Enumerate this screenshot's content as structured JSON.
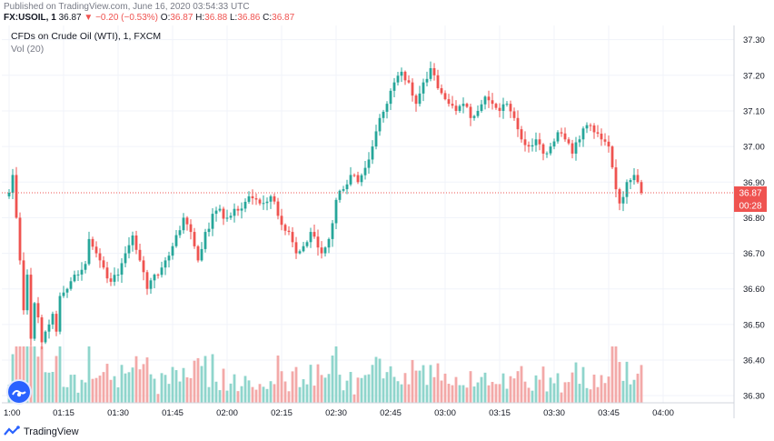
{
  "header": {
    "published": "Published on TradingView.com, June 16, 2020 03:54:33 UTC",
    "symbol": "FX:USOIL, 1",
    "last": "36.87",
    "arrow": "▼",
    "change": "−0.20 (−0.53%)",
    "o_label": "O:",
    "o_value": "36.87",
    "h_label": "H:",
    "h_value": "36.88",
    "l_label": "L:",
    "l_value": "36.86",
    "c_label": "C:",
    "c_value": "36.87"
  },
  "chart_title": "CFDs on Crude Oil (WTI), 1, FXCM",
  "volume_label": "Vol (20)",
  "price_badge": "36.87",
  "countdown_badge": "00:28",
  "footer": {
    "brand": "TradingView"
  },
  "colors": {
    "up": "#26a69a",
    "down": "#ef5350",
    "vol_up": "#8fd5cc",
    "vol_down": "#f3a9a8",
    "badge": "#ef5350"
  },
  "chart_data": {
    "type": "candlestick",
    "y_ticks": [
      "37.30",
      "37.20",
      "37.10",
      "37.00",
      "36.90",
      "36.80",
      "36.70",
      "36.60",
      "36.50",
      "36.40",
      "36.30"
    ],
    "ylim": [
      36.28,
      37.34
    ],
    "x_ticks": [
      "1:00",
      "01:15",
      "01:30",
      "01:45",
      "02:00",
      "02:15",
      "02:30",
      "02:45",
      "03:00",
      "03:15",
      "03:30",
      "03:45",
      "04:00"
    ],
    "x_tick_minutes": [
      0,
      15,
      30,
      45,
      60,
      75,
      90,
      105,
      120,
      135,
      150,
      165,
      180
    ],
    "last_price": 36.87,
    "anchors": [
      [
        0,
        36.87
      ],
      [
        1,
        36.92
      ],
      [
        2,
        36.8
      ],
      [
        3,
        36.68
      ],
      [
        4,
        36.54
      ],
      [
        5,
        36.64
      ],
      [
        6,
        36.46
      ],
      [
        7,
        36.56
      ],
      [
        8,
        36.52
      ],
      [
        9,
        36.45
      ],
      [
        10,
        36.48
      ],
      [
        11,
        36.5
      ],
      [
        12,
        36.53
      ],
      [
        13,
        36.48
      ],
      [
        14,
        36.58
      ],
      [
        16,
        36.6
      ],
      [
        18,
        36.64
      ],
      [
        21,
        36.67
      ],
      [
        22,
        36.74
      ],
      [
        24,
        36.7
      ],
      [
        26,
        36.66
      ],
      [
        28,
        36.62
      ],
      [
        30,
        36.64
      ],
      [
        32,
        36.7
      ],
      [
        34,
        36.75
      ],
      [
        36,
        36.68
      ],
      [
        38,
        36.6
      ],
      [
        40,
        36.64
      ],
      [
        42,
        36.66
      ],
      [
        45,
        36.72
      ],
      [
        48,
        36.8
      ],
      [
        50,
        36.76
      ],
      [
        52,
        36.68
      ],
      [
        54,
        36.76
      ],
      [
        57,
        36.82
      ],
      [
        60,
        36.8
      ],
      [
        63,
        36.82
      ],
      [
        66,
        36.86
      ],
      [
        69,
        36.84
      ],
      [
        72,
        36.86
      ],
      [
        75,
        36.78
      ],
      [
        77,
        36.76
      ],
      [
        79,
        36.7
      ],
      [
        81,
        36.72
      ],
      [
        83,
        36.76
      ],
      [
        86,
        36.7
      ],
      [
        88,
        36.74
      ],
      [
        90,
        36.85
      ],
      [
        92,
        36.88
      ],
      [
        94,
        36.92
      ],
      [
        96,
        36.9
      ],
      [
        98,
        36.94
      ],
      [
        100,
        37.0
      ],
      [
        102,
        37.08
      ],
      [
        104,
        37.12
      ],
      [
        106,
        37.18
      ],
      [
        108,
        37.21
      ],
      [
        110,
        37.18
      ],
      [
        112,
        37.12
      ],
      [
        114,
        37.18
      ],
      [
        116,
        37.22
      ],
      [
        117,
        37.2
      ],
      [
        119,
        37.15
      ],
      [
        121,
        37.12
      ],
      [
        123,
        37.1
      ],
      [
        125,
        37.12
      ],
      [
        127,
        37.08
      ],
      [
        129,
        37.1
      ],
      [
        131,
        37.14
      ],
      [
        133,
        37.12
      ],
      [
        135,
        37.1
      ],
      [
        137,
        37.12
      ],
      [
        139,
        37.08
      ],
      [
        141,
        37.02
      ],
      [
        143,
        37.0
      ],
      [
        145,
        37.02
      ],
      [
        147,
        36.98
      ],
      [
        149,
        37.0
      ],
      [
        151,
        37.04
      ],
      [
        153,
        37.02
      ],
      [
        155,
        36.98
      ],
      [
        157,
        37.02
      ],
      [
        159,
        37.06
      ],
      [
        161,
        37.04
      ],
      [
        163,
        37.02
      ],
      [
        165,
        37.0
      ],
      [
        167,
        36.88
      ],
      [
        168,
        36.84
      ],
      [
        170,
        36.9
      ],
      [
        172,
        36.92
      ],
      [
        173,
        36.9
      ],
      [
        174,
        36.87
      ]
    ],
    "volume_max": 25
  }
}
